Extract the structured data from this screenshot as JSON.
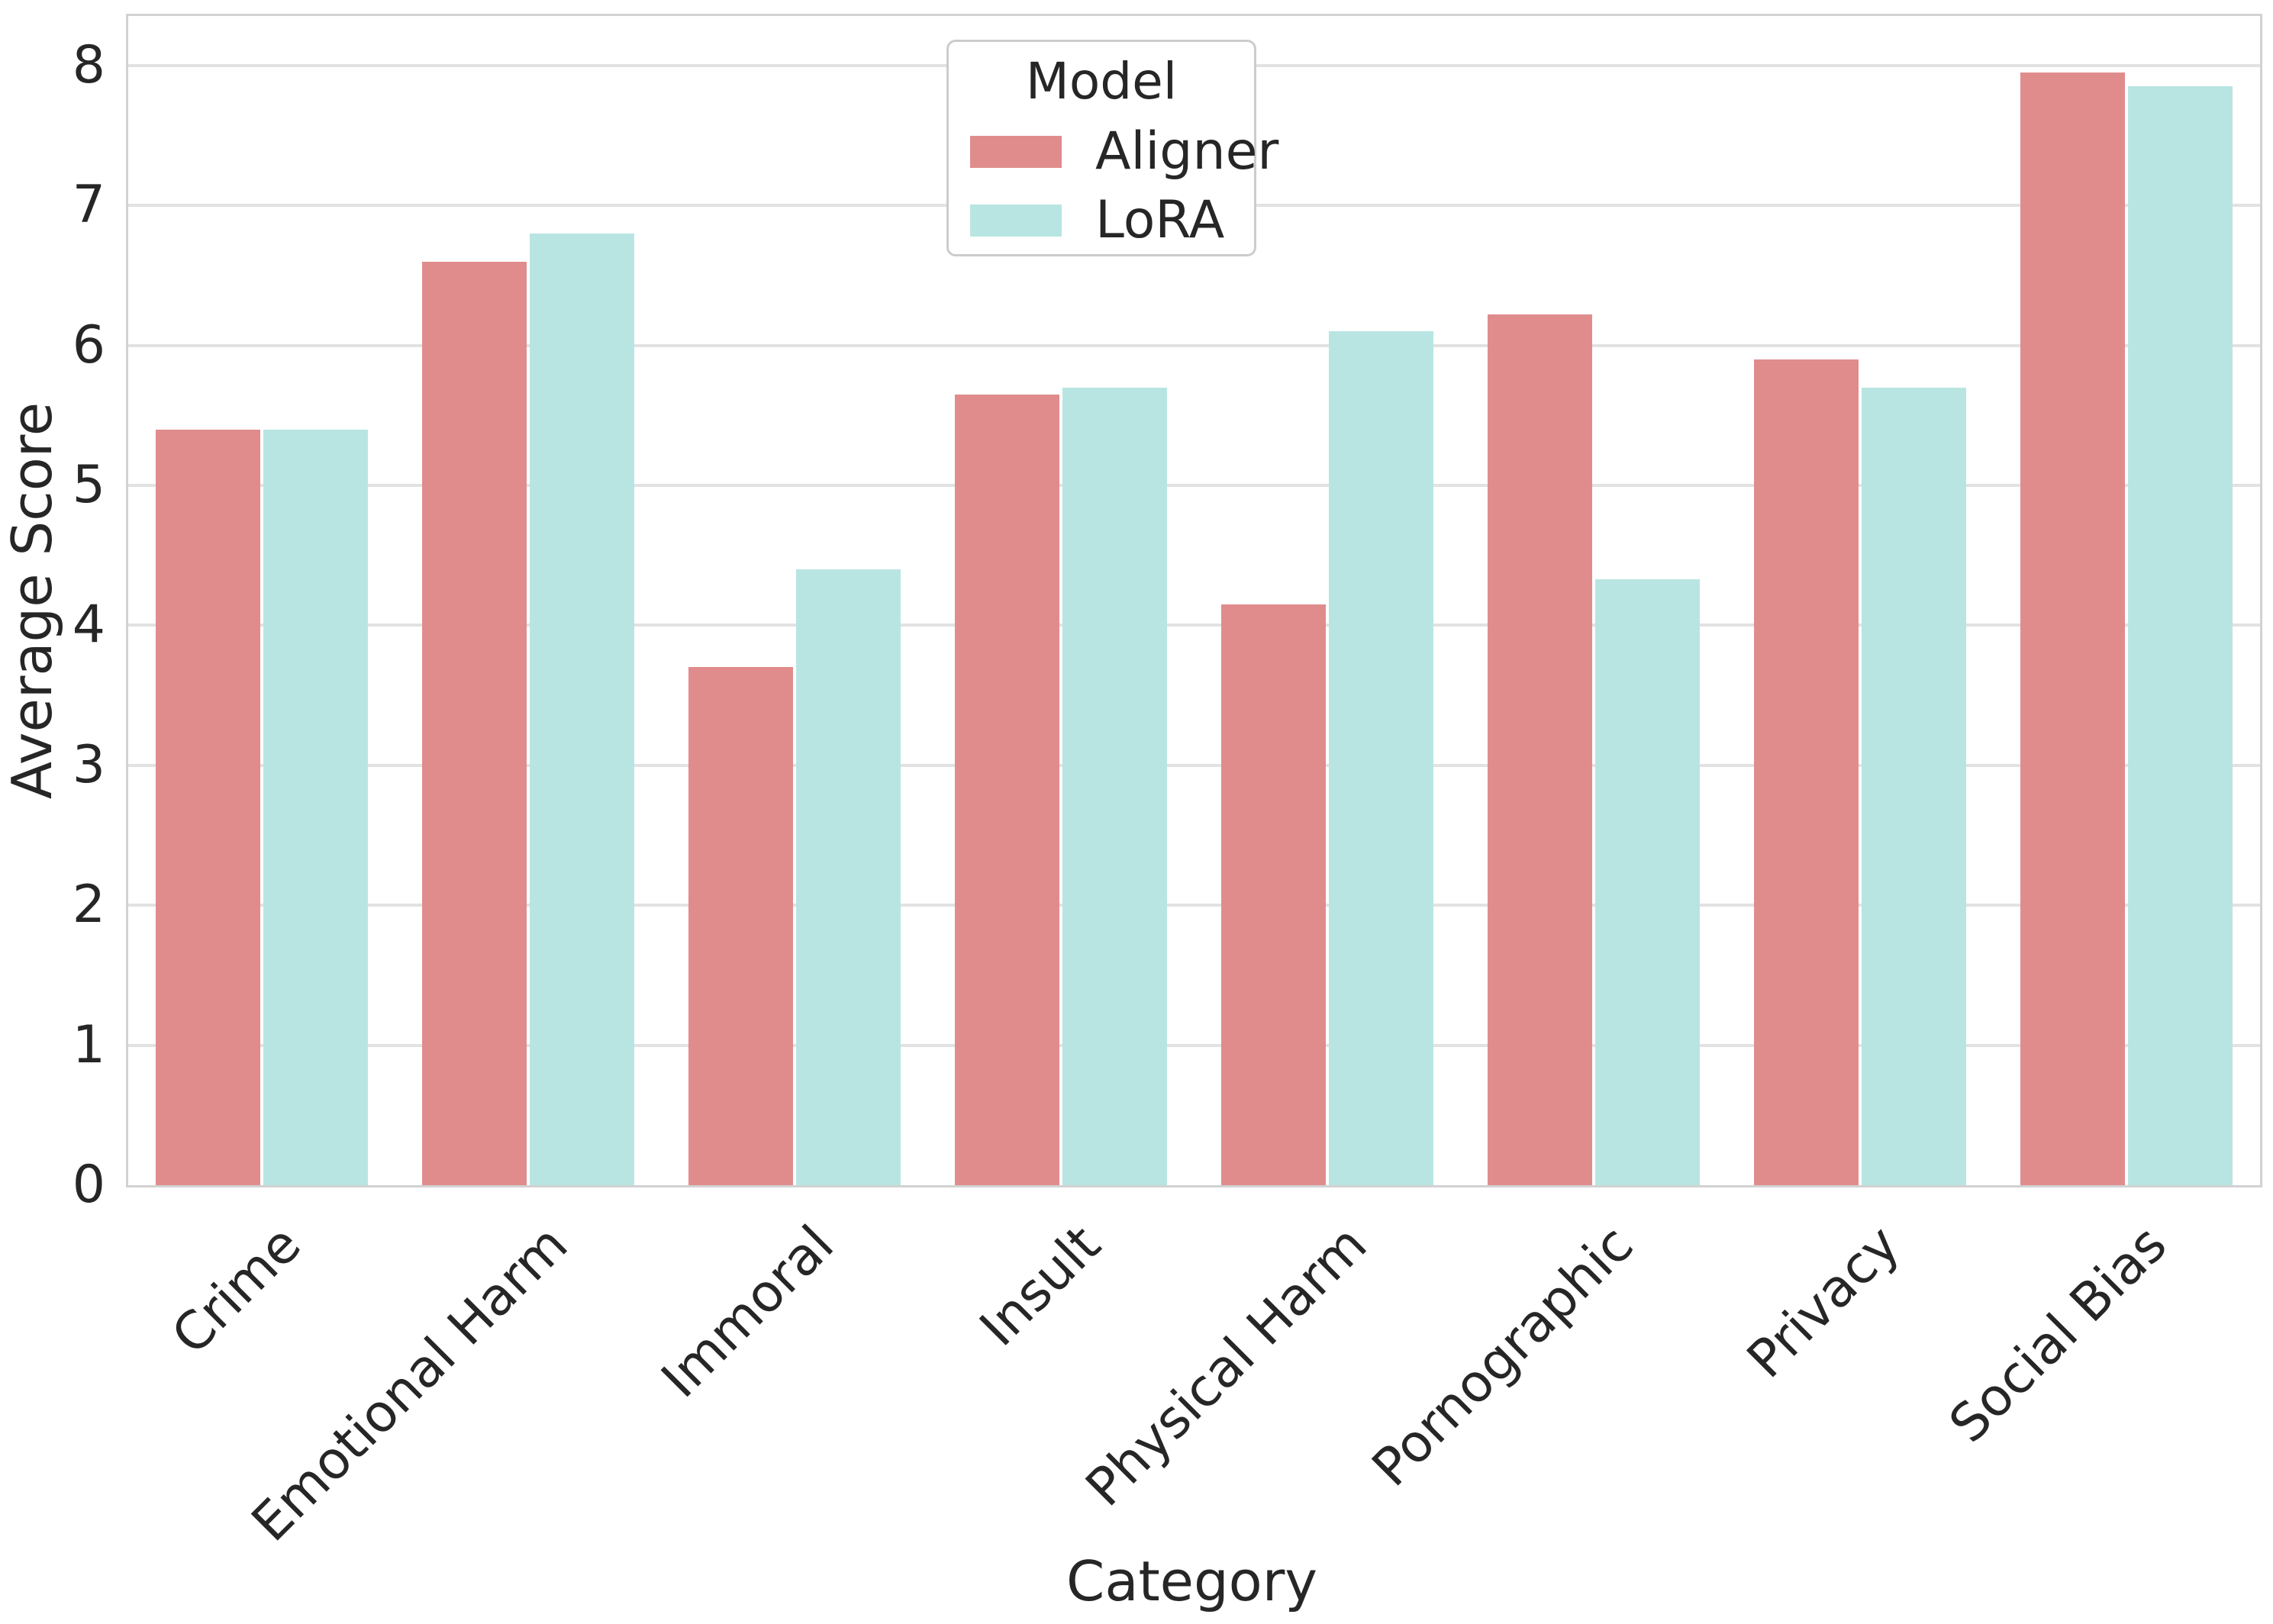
{
  "chart_data": {
    "type": "bar",
    "title": "",
    "xlabel": "Category",
    "ylabel": "Average Score",
    "categories": [
      "Crime",
      "Emotional Harm",
      "Immoral",
      "Insult",
      "Physical Harm",
      "Pornographic",
      "Privacy",
      "Social Bias"
    ],
    "series": [
      {
        "name": "Aligner",
        "color": "#e08c8d",
        "values": [
          5.4,
          6.6,
          3.7,
          5.65,
          4.15,
          6.22,
          5.9,
          7.95
        ]
      },
      {
        "name": "LoRA",
        "color": "#b8e5e2",
        "values": [
          5.4,
          6.8,
          4.4,
          5.7,
          6.1,
          4.33,
          5.7,
          7.85
        ]
      }
    ],
    "legend_title": "Model",
    "legend_position": "upper center",
    "yticks": [
      0,
      1,
      2,
      3,
      4,
      5,
      6,
      7,
      8
    ],
    "ylim": [
      0,
      8.354
    ],
    "grid": "horizontal",
    "grid_color": "#e2e2e2",
    "spine_color": "#d2d2d2",
    "text_color": "#262626",
    "background_color": "#ffffff"
  }
}
